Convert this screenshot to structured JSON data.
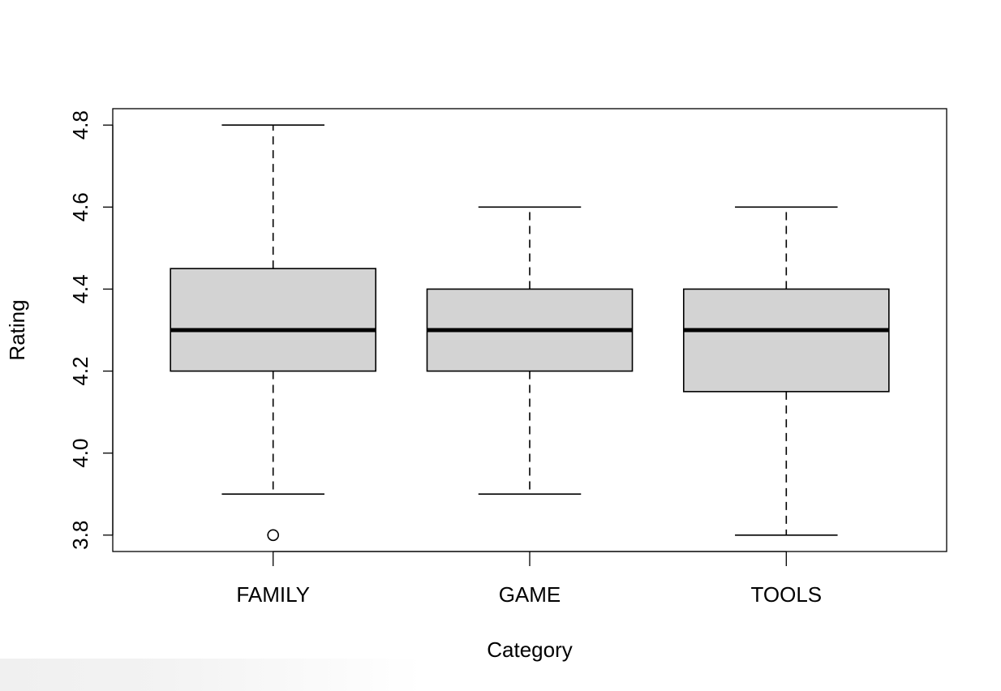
{
  "chart_data": {
    "type": "boxplot",
    "title": "",
    "xlabel": "Category",
    "ylabel": "Rating",
    "categories": [
      "FAMILY",
      "GAME",
      "TOOLS"
    ],
    "ylim": [
      3.76,
      4.84
    ],
    "yticks": [
      3.8,
      4.0,
      4.2,
      4.4,
      4.6,
      4.8
    ],
    "ytick_labels": [
      "3.8",
      "4.0",
      "4.2",
      "4.4",
      "4.6",
      "4.8"
    ],
    "grid": false,
    "legend": "none",
    "box_fill": "#d3d3d3",
    "line_color": "#000000",
    "boxes": [
      {
        "category": "FAMILY",
        "whisker_low": 3.9,
        "q1": 4.2,
        "median": 4.3,
        "q3": 4.45,
        "whisker_high": 4.8,
        "outliers": [
          3.8
        ]
      },
      {
        "category": "GAME",
        "whisker_low": 3.9,
        "q1": 4.2,
        "median": 4.3,
        "q3": 4.4,
        "whisker_high": 4.6,
        "outliers": []
      },
      {
        "category": "TOOLS",
        "whisker_low": 3.8,
        "q1": 4.15,
        "median": 4.3,
        "q3": 4.4,
        "whisker_high": 4.6,
        "outliers": []
      }
    ]
  }
}
